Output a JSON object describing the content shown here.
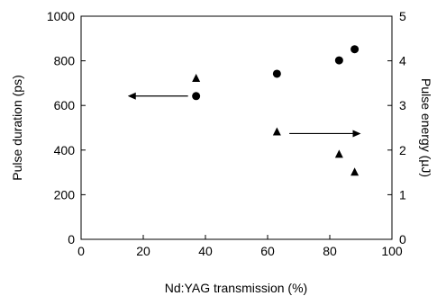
{
  "chart_data": {
    "type": "scatter",
    "xlabel": "Nd:YAG transmission (%)",
    "ylabel_left": "Pulse duration (ps)",
    "ylabel_right": "Pulse energy (µJ)",
    "xlim": [
      0,
      100
    ],
    "ylim_left": [
      0,
      1000
    ],
    "ylim_right": [
      0,
      5
    ],
    "x_ticks": [
      0,
      20,
      40,
      60,
      80,
      100
    ],
    "y_left_ticks": [
      0,
      200,
      400,
      600,
      800,
      1000
    ],
    "y_right_ticks": [
      0,
      1,
      2,
      3,
      4,
      5
    ],
    "grid": false,
    "series": [
      {
        "marker": "circle",
        "axis": "left",
        "points": [
          {
            "x": 37,
            "y": 642
          },
          {
            "x": 63,
            "y": 742
          },
          {
            "x": 83,
            "y": 802
          },
          {
            "x": 88,
            "y": 852
          }
        ]
      },
      {
        "marker": "triangle",
        "axis": "right",
        "points": [
          {
            "x": 37,
            "y": 3.6
          },
          {
            "x": 63,
            "y": 2.4
          },
          {
            "x": 83,
            "y": 1.9
          },
          {
            "x": 88,
            "y": 1.5
          }
        ]
      }
    ],
    "annotations": [
      {
        "type": "arrow",
        "direction": "left",
        "points_to_axis": "left",
        "from": {
          "x": 37,
          "y": 642
        },
        "to": {
          "x": 15,
          "y": 642
        }
      },
      {
        "type": "arrow",
        "direction": "right",
        "points_to_axis": "right",
        "from": {
          "x": 67,
          "y": 2.37
        },
        "to": {
          "x": 90,
          "y": 2.37
        }
      }
    ]
  }
}
